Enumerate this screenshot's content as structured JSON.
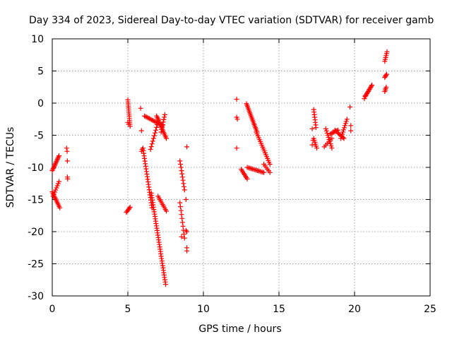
{
  "chart_data": {
    "type": "scatter",
    "title": "Day 334 of 2023, Sidereal Day-to-day VTEC variation (SDTVAR) for receiver gamb",
    "xlabel": "GPS time / hours",
    "ylabel": "SDTVAR / TECUs",
    "xlim": [
      0,
      25
    ],
    "ylim": [
      -30,
      10
    ],
    "xticks": [
      0,
      5,
      10,
      15,
      20,
      25
    ],
    "yticks": [
      -30,
      -25,
      -20,
      -15,
      -10,
      -5,
      0,
      5,
      10
    ],
    "xtick_labels": [
      "0",
      "5",
      "10",
      "15",
      "20",
      "25"
    ],
    "ytick_labels": [
      "-30",
      "-25",
      "-20",
      "-15",
      "-10",
      "-5",
      "0",
      "5",
      "10"
    ],
    "grid": true,
    "marker": "+",
    "color": "#ff0000",
    "segments": [
      {
        "x0": 0.0,
        "y0": -10.5,
        "x1": 0.45,
        "y1": -8.2,
        "n": 14
      },
      {
        "x0": 0.0,
        "y0": -13.8,
        "x1": 0.5,
        "y1": -16.3,
        "n": 12
      },
      {
        "x0": 0.05,
        "y0": -14.5,
        "x1": 0.45,
        "y1": -12.2,
        "n": 8
      },
      {
        "x0": 4.9,
        "y0": -17.0,
        "x1": 5.15,
        "y1": -16.2,
        "n": 6
      },
      {
        "x0": 5.0,
        "y0": 0.5,
        "x1": 5.15,
        "y1": -3.6,
        "n": 14
      },
      {
        "x0": 6.0,
        "y0": -7.0,
        "x1": 6.6,
        "y1": -16.3,
        "n": 24
      },
      {
        "x0": 6.1,
        "y0": -2.0,
        "x1": 7.3,
        "y1": -3.5,
        "n": 16
      },
      {
        "x0": 6.5,
        "y0": -7.2,
        "x1": 7.05,
        "y1": -2.5,
        "n": 12
      },
      {
        "x0": 6.55,
        "y0": -14.0,
        "x1": 7.5,
        "y1": -28.2,
        "n": 40
      },
      {
        "x0": 6.9,
        "y0": -2.0,
        "x1": 7.55,
        "y1": -5.5,
        "n": 16
      },
      {
        "x0": 7.0,
        "y0": -14.5,
        "x1": 7.55,
        "y1": -16.8,
        "n": 10
      },
      {
        "x0": 7.2,
        "y0": -4.5,
        "x1": 7.45,
        "y1": -1.8,
        "n": 8
      },
      {
        "x0": 8.45,
        "y0": -9.0,
        "x1": 8.75,
        "y1": -13.5,
        "n": 10
      },
      {
        "x0": 8.45,
        "y0": -15.5,
        "x1": 8.75,
        "y1": -21.0,
        "n": 10
      },
      {
        "x0": 12.5,
        "y0": -10.3,
        "x1": 12.9,
        "y1": -11.8,
        "n": 8
      },
      {
        "x0": 12.85,
        "y0": -0.1,
        "x1": 13.55,
        "y1": -4.5,
        "n": 20
      },
      {
        "x0": 13.5,
        "y0": -4.5,
        "x1": 14.4,
        "y1": -9.5,
        "n": 18
      },
      {
        "x0": 12.9,
        "y0": -10.0,
        "x1": 14.0,
        "y1": -10.8,
        "n": 14
      },
      {
        "x0": 14.0,
        "y0": -9.5,
        "x1": 14.4,
        "y1": -10.8,
        "n": 6
      },
      {
        "x0": 17.3,
        "y0": -1.0,
        "x1": 17.45,
        "y1": -3.8,
        "n": 8
      },
      {
        "x0": 17.3,
        "y0": -5.5,
        "x1": 17.5,
        "y1": -7.0,
        "n": 6
      },
      {
        "x0": 18.1,
        "y0": -4.0,
        "x1": 18.5,
        "y1": -7.0,
        "n": 10
      },
      {
        "x0": 18.0,
        "y0": -6.8,
        "x1": 18.5,
        "y1": -5.5,
        "n": 6
      },
      {
        "x0": 18.4,
        "y0": -4.8,
        "x1": 18.9,
        "y1": -4.2,
        "n": 8
      },
      {
        "x0": 18.7,
        "y0": -4.2,
        "x1": 19.3,
        "y1": -5.5,
        "n": 10
      },
      {
        "x0": 19.1,
        "y0": -5.5,
        "x1": 19.5,
        "y1": -2.5,
        "n": 10
      },
      {
        "x0": 20.7,
        "y0": 1.0,
        "x1": 21.15,
        "y1": 2.8,
        "n": 12
      },
      {
        "x0": 22.0,
        "y0": 6.5,
        "x1": 22.15,
        "y1": 8.0,
        "n": 6
      },
      {
        "x0": 22.0,
        "y0": 4.0,
        "x1": 22.12,
        "y1": 4.5,
        "n": 4
      },
      {
        "x0": 22.0,
        "y0": 1.8,
        "x1": 22.1,
        "y1": 2.5,
        "n": 4
      }
    ],
    "points": [
      [
        0.95,
        -7.0
      ],
      [
        0.98,
        -7.5
      ],
      [
        1.0,
        -9.0
      ],
      [
        1.0,
        -11.5
      ],
      [
        1.02,
        -11.8
      ],
      [
        5.0,
        -3.0
      ],
      [
        5.05,
        -3.3
      ],
      [
        5.85,
        -0.8
      ],
      [
        5.9,
        -4.3
      ],
      [
        5.9,
        -7.5
      ],
      [
        5.95,
        -7.2
      ],
      [
        8.55,
        -20.8
      ],
      [
        8.9,
        -6.8
      ],
      [
        8.85,
        -15.0
      ],
      [
        8.85,
        -19.8
      ],
      [
        8.9,
        -20.0
      ],
      [
        8.9,
        -22.5
      ],
      [
        8.9,
        -23.0
      ],
      [
        12.2,
        0.6
      ],
      [
        12.2,
        -2.2
      ],
      [
        12.25,
        -2.5
      ],
      [
        12.2,
        -7.0
      ],
      [
        17.2,
        -4.0
      ],
      [
        17.25,
        -5.8
      ],
      [
        17.2,
        -6.5
      ],
      [
        19.7,
        -0.6
      ],
      [
        19.75,
        -3.5
      ],
      [
        19.75,
        -4.3
      ],
      [
        20.65,
        0.7
      ],
      [
        20.7,
        1.1
      ]
    ]
  }
}
